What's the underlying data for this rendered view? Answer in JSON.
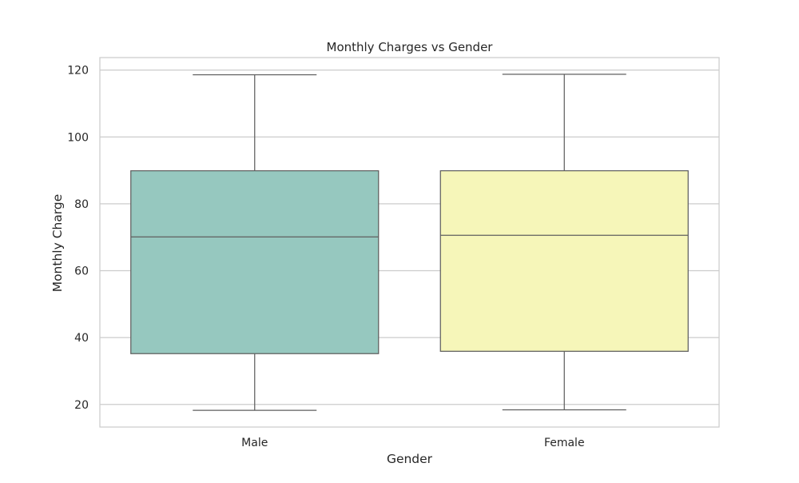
{
  "chart_data": {
    "type": "box",
    "title": "Monthly Charges vs Gender",
    "xlabel": "Gender",
    "ylabel": "Monthly Charge",
    "categories": [
      "Male",
      "Female"
    ],
    "boxes": [
      {
        "category": "Male",
        "whisker_low": 18.25,
        "q1": 35.2,
        "median": 70.1,
        "q3": 89.9,
        "whisker_high": 118.6,
        "color": "#96c8bf"
      },
      {
        "category": "Female",
        "whisker_low": 18.4,
        "q1": 35.9,
        "median": 70.6,
        "q3": 89.9,
        "whisker_high": 118.75,
        "color": "#f6f6b9"
      }
    ],
    "yticks": [
      20,
      40,
      60,
      80,
      100,
      120
    ],
    "ylim": [
      13.25,
      123.75
    ],
    "grid": "horizontal",
    "colors": {
      "box_edge": "#5f5f5f",
      "grid": "#cccccc",
      "frame": "#cccccc"
    }
  }
}
